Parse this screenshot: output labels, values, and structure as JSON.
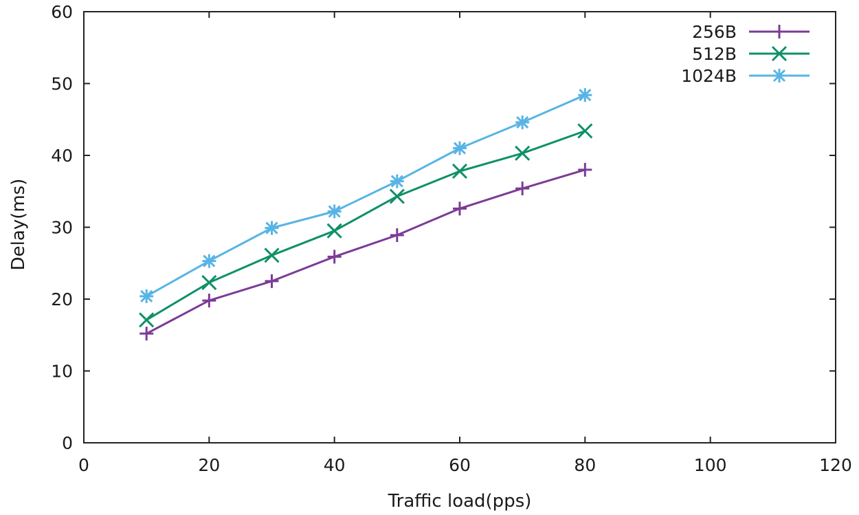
{
  "chart_data": {
    "type": "line",
    "xlabel": "Traffic load(pps)",
    "ylabel": "Delay(ms)",
    "xlim": [
      0,
      120
    ],
    "ylim": [
      0,
      60
    ],
    "x_ticks": [
      0,
      20,
      40,
      60,
      80,
      100,
      120
    ],
    "y_ticks": [
      0,
      10,
      20,
      30,
      40,
      50,
      60
    ],
    "grid": false,
    "legend_position": "top-right",
    "x": [
      10,
      20,
      30,
      40,
      50,
      60,
      70,
      80
    ],
    "series": [
      {
        "name": "256B",
        "color": "#7b3b96",
        "marker": "plus",
        "values": [
          15.2,
          19.8,
          22.5,
          25.9,
          28.9,
          32.6,
          35.4,
          38.0
        ]
      },
      {
        "name": "512B",
        "color": "#0f9068",
        "marker": "cross",
        "values": [
          17.1,
          22.3,
          26.1,
          29.5,
          34.3,
          37.8,
          40.3,
          43.4
        ]
      },
      {
        "name": "1024B",
        "color": "#58b4e5",
        "marker": "star",
        "values": [
          20.4,
          25.3,
          29.9,
          32.2,
          36.4,
          41.0,
          44.6,
          48.4
        ]
      }
    ]
  }
}
